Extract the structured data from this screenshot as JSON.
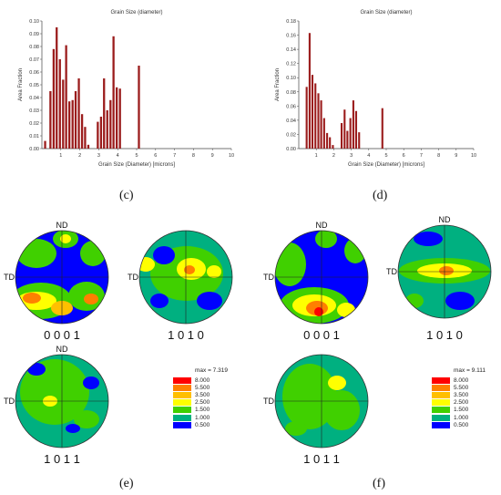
{
  "chart_data": [
    {
      "type": "bar",
      "title": "Grain Size (diameter)",
      "xlabel": "Grain Size (Diameter) [microns]",
      "ylabel": "Area Fraction",
      "xlim": [
        0,
        10
      ],
      "ylim": [
        0,
        0.1
      ],
      "xticks": [
        "1",
        "2",
        "3",
        "4",
        "5",
        "6",
        "7",
        "8",
        "9",
        "10"
      ],
      "yticks": [
        "0.00",
        "0.01",
        "0.02",
        "0.03",
        "0.04",
        "0.05",
        "0.06",
        "0.07",
        "0.08",
        "0.09",
        "0.10"
      ],
      "x": [
        0.17,
        0.45,
        0.62,
        0.78,
        0.95,
        1.12,
        1.28,
        1.45,
        1.62,
        1.78,
        1.95,
        2.12,
        2.28,
        2.45,
        2.95,
        3.12,
        3.28,
        3.45,
        3.62,
        3.78,
        3.95,
        4.12,
        5.12
      ],
      "values": [
        0.006,
        0.045,
        0.078,
        0.095,
        0.07,
        0.054,
        0.081,
        0.037,
        0.038,
        0.045,
        0.055,
        0.027,
        0.017,
        0.003,
        0.021,
        0.025,
        0.055,
        0.03,
        0.038,
        0.088,
        0.048,
        0.047,
        0.065
      ],
      "bar_color": "#9b1c1c"
    },
    {
      "type": "bar",
      "title": "Grain Size (diameter)",
      "xlabel": "Grain Size (Diameter) [microns]",
      "ylabel": "Area Fraction",
      "xlim": [
        0,
        10
      ],
      "ylim": [
        0,
        0.18
      ],
      "xticks": [
        "1",
        "2",
        "3",
        "4",
        "5",
        "6",
        "7",
        "8",
        "9",
        "10"
      ],
      "yticks": [
        "0.00",
        "0.02",
        "0.04",
        "0.06",
        "0.08",
        "0.10",
        "0.12",
        "0.14",
        "0.16",
        "0.18"
      ],
      "x": [
        0.45,
        0.62,
        0.78,
        0.95,
        1.12,
        1.28,
        1.45,
        1.62,
        1.78,
        1.95,
        2.45,
        2.62,
        2.78,
        2.95,
        3.12,
        3.28,
        3.45,
        4.78
      ],
      "values": [
        0.087,
        0.163,
        0.104,
        0.092,
        0.078,
        0.068,
        0.043,
        0.022,
        0.016,
        0.005,
        0.036,
        0.055,
        0.025,
        0.043,
        0.068,
        0.053,
        0.023,
        0.057
      ],
      "bar_color": "#9b1c1c"
    }
  ],
  "panels": {
    "c": "(c)",
    "d": "(d)",
    "e": "(e)",
    "f": "(f)"
  },
  "pole_figures": {
    "nd": "ND",
    "td": "TD",
    "labels": {
      "p0001": "0 0 0 1",
      "p1010": "1 0 1 0",
      "p1011": "1 0 1 1"
    }
  },
  "legend_e": {
    "max": "max = 7.319",
    "levels": [
      "8.000",
      "5.500",
      "3.500",
      "2.500",
      "1.500",
      "1.000",
      "0.500"
    ],
    "colors": [
      "#ff0000",
      "#ff8000",
      "#ffbf00",
      "#ffff00",
      "#40d000",
      "#00b080",
      "#0000ff"
    ]
  },
  "legend_f": {
    "max": "max = 9.111",
    "levels": [
      "8.000",
      "5.500",
      "3.500",
      "2.500",
      "1.500",
      "1.000",
      "0.500"
    ],
    "colors": [
      "#ff0000",
      "#ff8000",
      "#ffbf00",
      "#ffff00",
      "#40d000",
      "#00b080",
      "#0000ff"
    ]
  }
}
